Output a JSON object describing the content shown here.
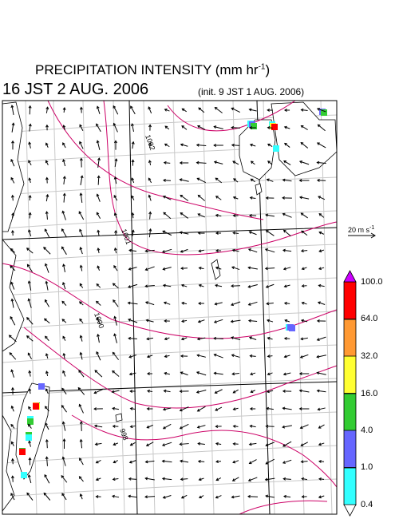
{
  "header": {
    "title_main": "PRECIPITATION INTENSITY (mm hr",
    "title_exp": "-1",
    "title_close": ")",
    "valid_time": "16 JST 2 AUG. 2006",
    "init_time": "(init. 9 JST 1 AUG. 2006)"
  },
  "map": {
    "isobar_labels": [
      "1002",
      "1001",
      "1000",
      "999",
      "998"
    ],
    "land_color": "#ffffff",
    "isobar_color": "#cc0066",
    "grid_color": "#c8c8c8"
  },
  "wind_scale": {
    "speed_label": "20 m s",
    "speed_exp": "-1"
  },
  "colorbar": {
    "levels": [
      "100.0",
      "64.0",
      "32.0",
      "16.0",
      "4.0",
      "1.0",
      "0.4"
    ],
    "colors": [
      "#cc00ff",
      "#ff0000",
      "#ff9933",
      "#ffff33",
      "#33cc33",
      "#6666ff",
      "#33ffff"
    ]
  }
}
